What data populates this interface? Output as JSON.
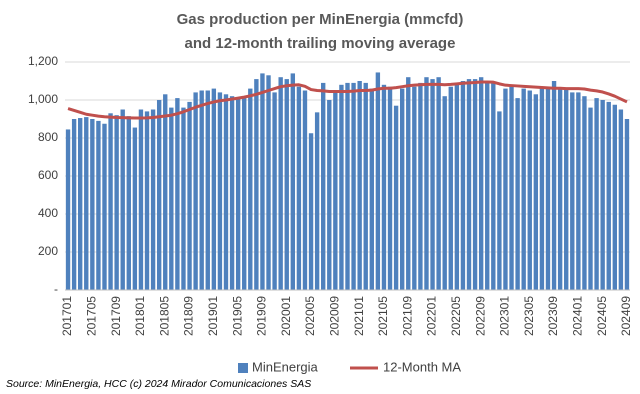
{
  "chart_data": {
    "type": "bar",
    "title": [
      "Gas production per MinEnergia (mmcfd)",
      "and 12-month trailing moving average"
    ],
    "source": "Source: MinEnergia, HCC (c) 2024 Mirador Comunicaciones SAS",
    "categories": [
      "201701",
      null,
      null,
      null,
      "201705",
      null,
      null,
      null,
      "201709",
      null,
      null,
      null,
      "201801",
      null,
      null,
      null,
      "201805",
      null,
      null,
      null,
      "201809",
      null,
      null,
      null,
      "201901",
      null,
      null,
      null,
      "201905",
      null,
      null,
      null,
      "201909",
      null,
      null,
      null,
      "202001",
      null,
      null,
      null,
      "202005",
      null,
      null,
      null,
      "202009",
      null,
      null,
      null,
      "202101",
      null,
      null,
      null,
      "202105",
      null,
      null,
      null,
      "202109",
      null,
      null,
      null,
      "202201",
      null,
      null,
      null,
      "202205",
      null,
      null,
      null,
      "202209",
      null,
      null,
      null,
      "202301",
      null,
      null,
      null,
      "202305",
      null,
      null,
      null,
      "202309",
      null,
      null,
      null,
      "202401",
      null,
      null,
      null,
      "202405",
      null,
      null,
      null,
      "202409"
    ],
    "series": [
      {
        "name": "MinEnergia",
        "type": "bar",
        "color": "#4f81bd",
        "values": [
          845,
          900,
          905,
          910,
          900,
          890,
          875,
          930,
          920,
          950,
          915,
          855,
          950,
          940,
          950,
          1000,
          1030,
          960,
          1010,
          960,
          990,
          1040,
          1050,
          1050,
          1060,
          1040,
          1030,
          1020,
          1010,
          1020,
          1060,
          1110,
          1140,
          1130,
          1040,
          1120,
          1110,
          1140,
          1070,
          1050,
          825,
          935,
          1090,
          1000,
          1040,
          1080,
          1090,
          1090,
          1100,
          1090,
          1060,
          1145,
          1080,
          1070,
          970,
          1060,
          1120,
          1070,
          1090,
          1120,
          1110,
          1120,
          1020,
          1070,
          1080,
          1100,
          1110,
          1110,
          1120,
          1100,
          1090,
          940,
          1060,
          1070,
          1010,
          1060,
          1050,
          1030,
          1070,
          1060,
          1100,
          1060,
          1060,
          1040,
          1040,
          1020,
          960,
          1010,
          1000,
          990,
          975,
          950,
          900
        ]
      },
      {
        "name": "12-Month MA",
        "type": "line",
        "color": "#c0504d",
        "values": [
          955,
          945,
          935,
          925,
          920,
          915,
          912,
          910,
          908,
          907,
          906,
          905,
          905,
          906,
          908,
          912,
          916,
          920,
          928,
          938,
          950,
          962,
          972,
          982,
          990,
          996,
          1000,
          1005,
          1010,
          1015,
          1022,
          1030,
          1040,
          1050,
          1060,
          1070,
          1075,
          1078,
          1080,
          1072,
          1055,
          1050,
          1048,
          1045,
          1045,
          1045,
          1045,
          1047,
          1050,
          1050,
          1052,
          1058,
          1062,
          1062,
          1065,
          1070,
          1075,
          1078,
          1080,
          1082,
          1082,
          1082,
          1080,
          1082,
          1085,
          1088,
          1090,
          1092,
          1095,
          1095,
          1094,
          1085,
          1078,
          1076,
          1074,
          1072,
          1070,
          1068,
          1066,
          1064,
          1062,
          1062,
          1060,
          1060,
          1060,
          1058,
          1052,
          1048,
          1042,
          1032,
          1020,
          1005,
          990
        ]
      }
    ],
    "ylim": [
      0,
      1200
    ],
    "yticks": [
      {
        "value": 0,
        "label": "-"
      },
      200,
      400,
      600,
      800,
      {
        "value": 1000,
        "label": "1,000"
      },
      {
        "value": 1200,
        "label": "1,200"
      }
    ],
    "grid": true
  }
}
